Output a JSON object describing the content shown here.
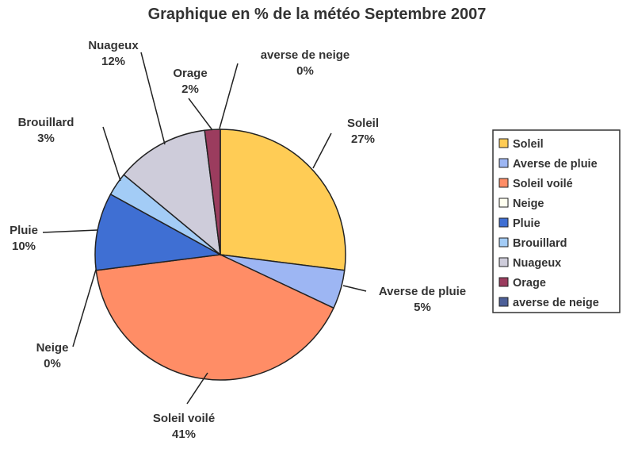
{
  "chart_data": {
    "type": "pie",
    "title": "Graphique en % de la météo Septembre 2007",
    "slices": [
      {
        "name": "Soleil",
        "value": 27,
        "label": "27%",
        "color": "#FFCC55"
      },
      {
        "name": "Averse de pluie",
        "value": 5,
        "label": "5%",
        "color": "#9DB6F3"
      },
      {
        "name": "Soleil voilé",
        "value": 41,
        "label": "41%",
        "color": "#FF8D66"
      },
      {
        "name": "Neige",
        "value": 0,
        "label": "0%",
        "color": "#FFFFF0"
      },
      {
        "name": "Pluie",
        "value": 10,
        "label": "10%",
        "color": "#3F6FD3"
      },
      {
        "name": "Brouillard",
        "value": 3,
        "label": "3%",
        "color": "#A3CCF6"
      },
      {
        "name": "Nuageux",
        "value": 12,
        "label": "12%",
        "color": "#CECCDA"
      },
      {
        "name": "Orage",
        "value": 2,
        "label": "2%",
        "color": "#9B3C5E"
      },
      {
        "name": "averse de neige",
        "value": 0,
        "label": "0%",
        "color": "#4C5F98"
      }
    ],
    "legend": {
      "position": "right",
      "entries": [
        "Soleil",
        "Averse de pluie",
        "Soleil voilé",
        "Neige",
        "Pluie",
        "Brouillard",
        "Nuageux",
        "Orage",
        "averse de neige"
      ]
    }
  }
}
